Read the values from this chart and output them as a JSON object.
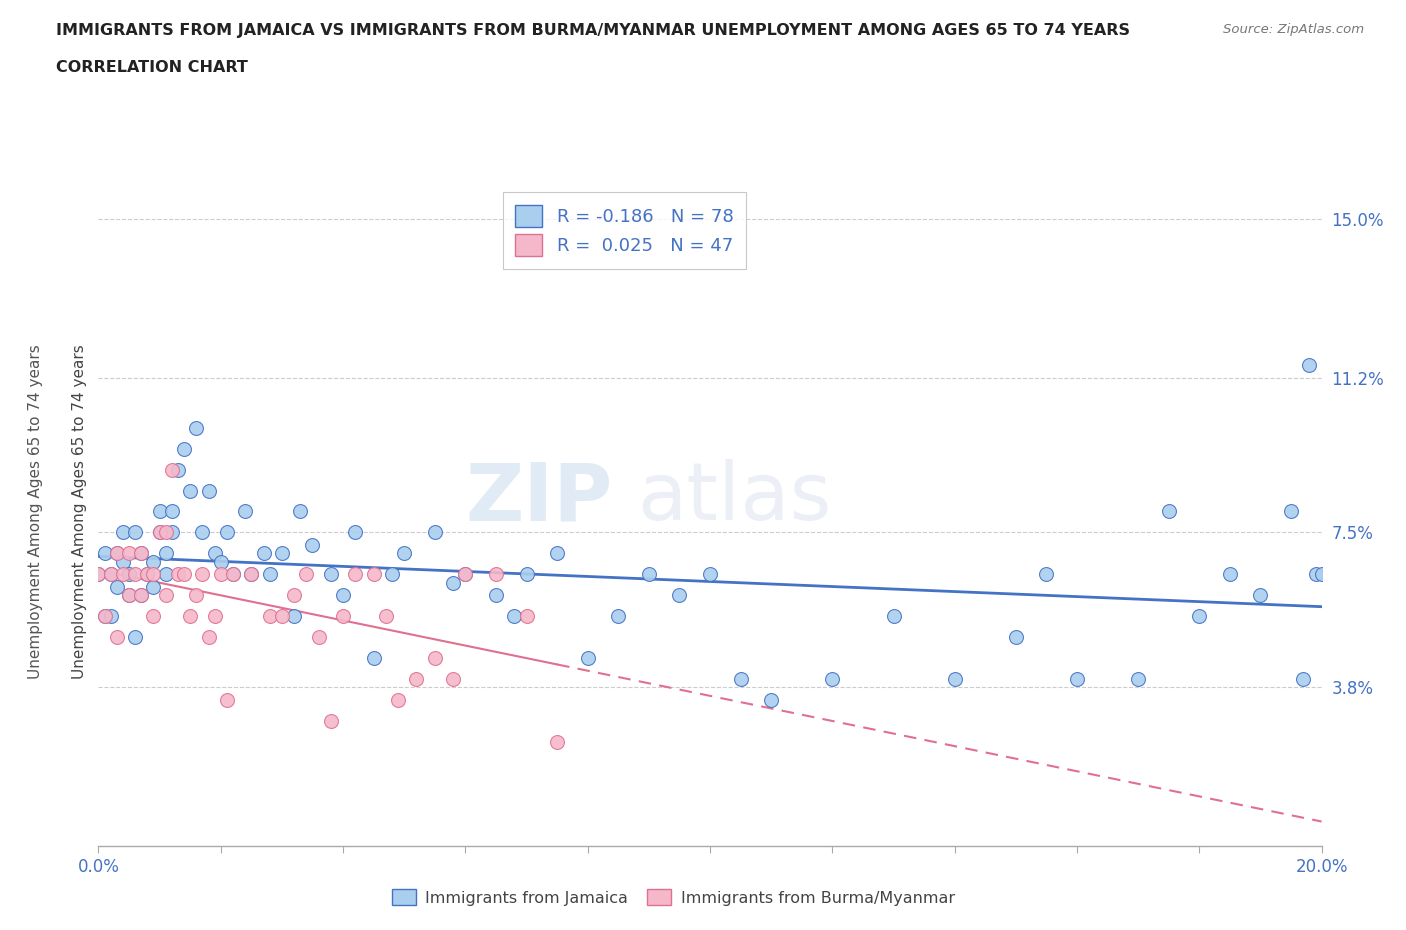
{
  "title_line1": "IMMIGRANTS FROM JAMAICA VS IMMIGRANTS FROM BURMA/MYANMAR UNEMPLOYMENT AMONG AGES 65 TO 74 YEARS",
  "title_line2": "CORRELATION CHART",
  "source_text": "Source: ZipAtlas.com",
  "ylabel": "Unemployment Among Ages 65 to 74 years",
  "xlim": [
    0.0,
    0.2
  ],
  "ylim": [
    0.0,
    0.16
  ],
  "ytick_values": [
    0.038,
    0.075,
    0.112,
    0.15
  ],
  "ytick_labels": [
    "3.8%",
    "7.5%",
    "11.2%",
    "15.0%"
  ],
  "legend_r1_black": "R = ",
  "legend_r1_colored": "-0.186",
  "legend_n1_black": "   N = ",
  "legend_n1_colored": "78",
  "legend_r2_black": "R = ",
  "legend_r2_colored": "0.025",
  "legend_n2_black": "   N = ",
  "legend_n2_colored": "47",
  "color_jamaica": "#aacfee",
  "color_burma": "#f5b8cb",
  "color_line_jamaica": "#4472c4",
  "color_line_burma": "#e07090",
  "color_text_blue": "#4472c4",
  "watermark_zip": "ZIP",
  "watermark_atlas": "atlas",
  "jamaica_x": [
    0.0,
    0.001,
    0.001,
    0.002,
    0.002,
    0.003,
    0.003,
    0.004,
    0.004,
    0.005,
    0.005,
    0.006,
    0.006,
    0.007,
    0.007,
    0.008,
    0.009,
    0.009,
    0.01,
    0.01,
    0.011,
    0.011,
    0.012,
    0.012,
    0.013,
    0.014,
    0.015,
    0.016,
    0.017,
    0.018,
    0.019,
    0.02,
    0.021,
    0.022,
    0.024,
    0.025,
    0.027,
    0.028,
    0.03,
    0.032,
    0.033,
    0.035,
    0.038,
    0.04,
    0.042,
    0.045,
    0.048,
    0.05,
    0.055,
    0.058,
    0.06,
    0.065,
    0.068,
    0.07,
    0.075,
    0.08,
    0.085,
    0.09,
    0.095,
    0.1,
    0.105,
    0.11,
    0.12,
    0.13,
    0.14,
    0.15,
    0.155,
    0.16,
    0.17,
    0.175,
    0.18,
    0.185,
    0.19,
    0.195,
    0.197,
    0.198,
    0.199,
    0.2
  ],
  "jamaica_y": [
    0.065,
    0.055,
    0.07,
    0.065,
    0.055,
    0.07,
    0.062,
    0.068,
    0.075,
    0.06,
    0.065,
    0.05,
    0.075,
    0.06,
    0.07,
    0.065,
    0.062,
    0.068,
    0.075,
    0.08,
    0.07,
    0.065,
    0.08,
    0.075,
    0.09,
    0.095,
    0.085,
    0.1,
    0.075,
    0.085,
    0.07,
    0.068,
    0.075,
    0.065,
    0.08,
    0.065,
    0.07,
    0.065,
    0.07,
    0.055,
    0.08,
    0.072,
    0.065,
    0.06,
    0.075,
    0.045,
    0.065,
    0.07,
    0.075,
    0.063,
    0.065,
    0.06,
    0.055,
    0.065,
    0.07,
    0.045,
    0.055,
    0.065,
    0.06,
    0.065,
    0.04,
    0.035,
    0.04,
    0.055,
    0.04,
    0.05,
    0.065,
    0.04,
    0.04,
    0.08,
    0.055,
    0.065,
    0.06,
    0.08,
    0.04,
    0.115,
    0.065,
    0.065
  ],
  "burma_x": [
    0.0,
    0.001,
    0.002,
    0.003,
    0.003,
    0.004,
    0.005,
    0.005,
    0.006,
    0.007,
    0.007,
    0.008,
    0.009,
    0.009,
    0.01,
    0.011,
    0.011,
    0.012,
    0.013,
    0.014,
    0.015,
    0.016,
    0.017,
    0.018,
    0.019,
    0.02,
    0.021,
    0.022,
    0.025,
    0.028,
    0.03,
    0.032,
    0.034,
    0.036,
    0.038,
    0.04,
    0.042,
    0.045,
    0.047,
    0.049,
    0.052,
    0.055,
    0.058,
    0.06,
    0.065,
    0.07,
    0.075
  ],
  "burma_y": [
    0.065,
    0.055,
    0.065,
    0.05,
    0.07,
    0.065,
    0.06,
    0.07,
    0.065,
    0.06,
    0.07,
    0.065,
    0.055,
    0.065,
    0.075,
    0.06,
    0.075,
    0.09,
    0.065,
    0.065,
    0.055,
    0.06,
    0.065,
    0.05,
    0.055,
    0.065,
    0.035,
    0.065,
    0.065,
    0.055,
    0.055,
    0.06,
    0.065,
    0.05,
    0.03,
    0.055,
    0.065,
    0.065,
    0.055,
    0.035,
    0.04,
    0.045,
    0.04,
    0.065,
    0.065,
    0.055,
    0.025
  ]
}
